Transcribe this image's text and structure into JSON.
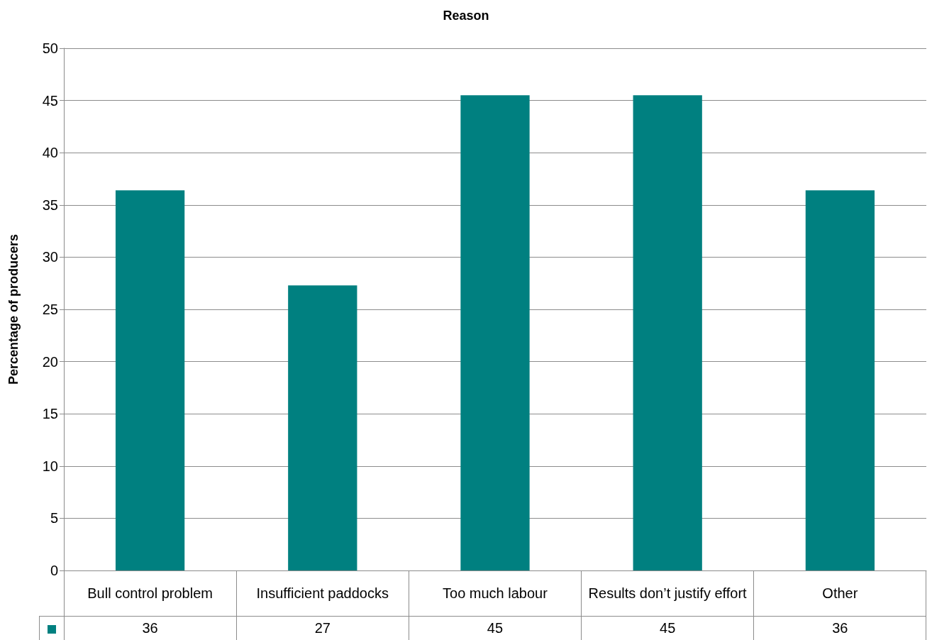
{
  "chart_data": {
    "type": "bar",
    "title": "Reason",
    "ylabel": "Percentage of producers",
    "categories": [
      "Bull control problem",
      "Insufficient paddocks",
      "Too much labour",
      "Results don’t justify effort",
      "Other"
    ],
    "values": [
      36.4,
      27.3,
      45.5,
      45.5,
      36.4
    ],
    "value_labels": [
      "36",
      "27",
      "45",
      "45",
      "36"
    ],
    "color": "#008080",
    "ylim": [
      0,
      50
    ],
    "yticks": [
      0,
      5,
      10,
      15,
      20,
      25,
      30,
      35,
      40,
      45,
      50
    ],
    "grid": "y"
  }
}
